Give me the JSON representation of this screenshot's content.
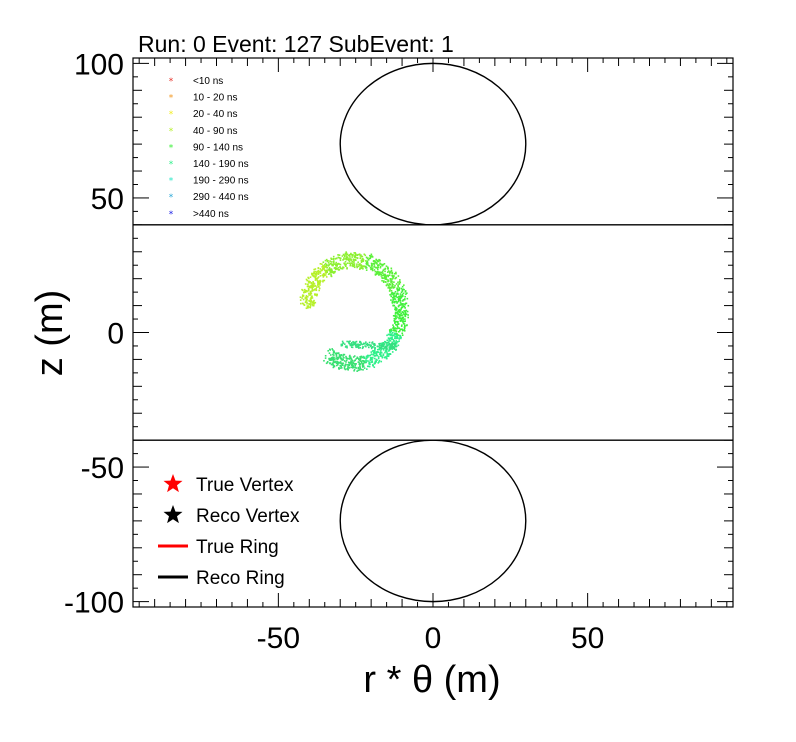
{
  "chart_data": {
    "type": "scatter",
    "title": "Run: 0  Event: 127  SubEvent: 1",
    "xlabel": "r * θ (m)",
    "ylabel": "z (m)",
    "xlim": [
      -97,
      97
    ],
    "ylim": [
      -102,
      102
    ],
    "xticks": [
      "-50",
      "0",
      "50"
    ],
    "yticks": [
      "100",
      "50",
      "0",
      "-50",
      "-100"
    ],
    "time_legend": [
      {
        "label": "<10 ns",
        "color": "#e6322a"
      },
      {
        "label": "10 - 20 ns",
        "color": "#f39a26"
      },
      {
        "label": "20 - 40 ns",
        "color": "#f2ee22"
      },
      {
        "label": "40 - 90 ns",
        "color": "#b6f02a"
      },
      {
        "label": "90 - 140 ns",
        "color": "#3ef03a"
      },
      {
        "label": "140 - 190 ns",
        "color": "#2ff08a"
      },
      {
        "label": "190 - 290 ns",
        "color": "#2ee8c8"
      },
      {
        "label": "290 - 440 ns",
        "color": "#2aa8d8"
      },
      {
        "label": ">440 ns",
        "color": "#1d22e6"
      }
    ],
    "legend": [
      {
        "label": "True Vertex",
        "marker": "star",
        "color": "#ff0000"
      },
      {
        "label": "Reco Vertex",
        "marker": "star",
        "color": "#000000"
      },
      {
        "label": "True Ring",
        "marker": "line",
        "color": "#ff0000"
      },
      {
        "label": "Reco Ring",
        "marker": "line",
        "color": "#000000"
      }
    ],
    "barrel_edges_z": [
      40,
      -40
    ],
    "end_caps": [
      {
        "center": [
          0,
          70
        ],
        "radius": 30
      },
      {
        "center": [
          0,
          -70
        ],
        "radius": 30
      }
    ],
    "hit_ring": {
      "arc_center": [
        -26,
        8
      ],
      "radius_x": 16,
      "radius_y": 20,
      "description_points": [
        [
          -46,
          8
        ],
        [
          -44,
          20
        ],
        [
          -36,
          27
        ],
        [
          -26,
          29
        ],
        [
          -18,
          24
        ],
        [
          -14,
          14
        ],
        [
          -12,
          0
        ],
        [
          -18,
          -5
        ],
        [
          -28,
          -4
        ]
      ]
    }
  }
}
